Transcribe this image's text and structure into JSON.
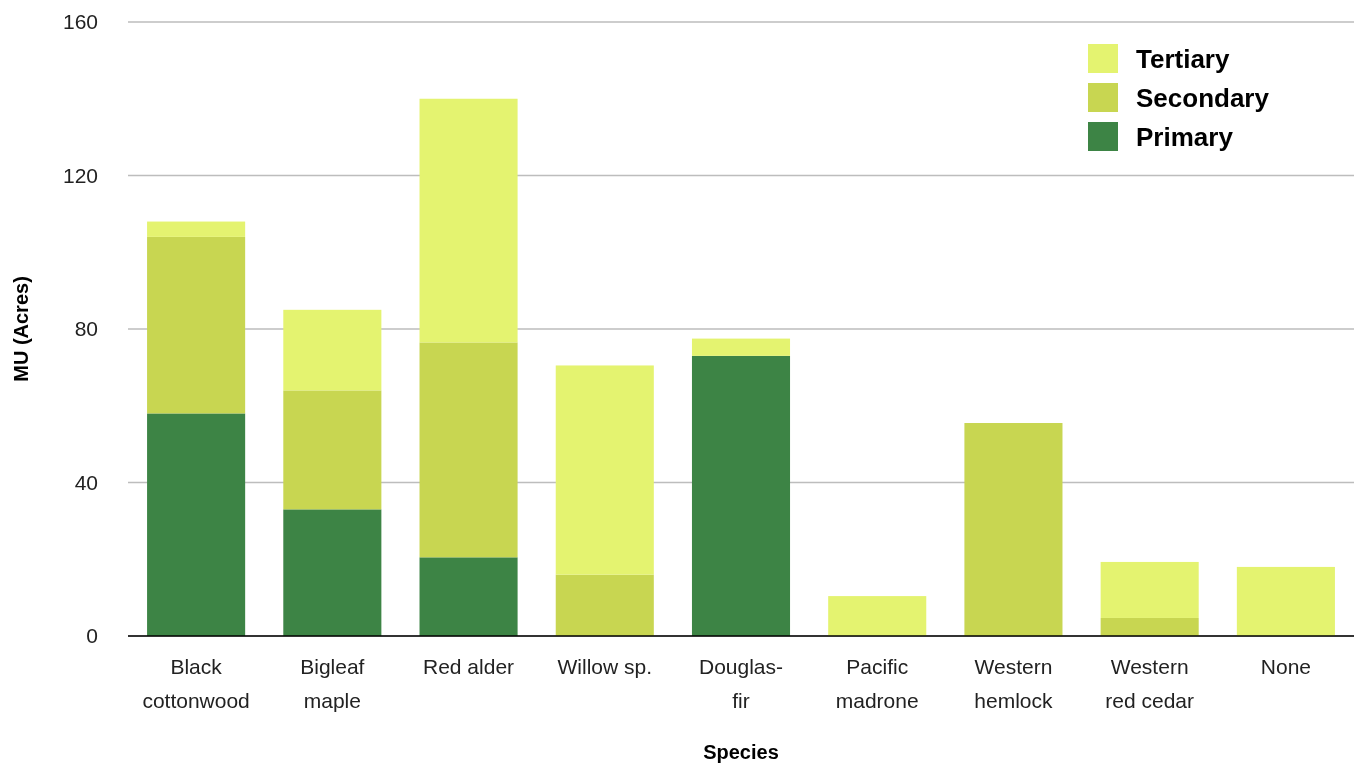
{
  "chart_data": {
    "type": "bar",
    "stacked": true,
    "xlabel": "Species",
    "ylabel": "MU (Acres)",
    "categories": [
      "Black cottonwood",
      "Bigleaf maple",
      "Red alder",
      "Willow sp.",
      "Douglas-fir",
      "Pacific madrone",
      "Western hemlock",
      "Western red cedar",
      "None"
    ],
    "series": [
      {
        "name": "Primary",
        "color": "#3d8445",
        "values": [
          58,
          33,
          20.5,
          0,
          73,
          0,
          0,
          0,
          0
        ]
      },
      {
        "name": "Secondary",
        "color": "#c8d651",
        "values": [
          46,
          31,
          56,
          16,
          0,
          0,
          55.5,
          4.7,
          0
        ]
      },
      {
        "name": "Tertiary",
        "color": "#e4f370",
        "values": [
          4,
          21,
          63.5,
          54.5,
          4.5,
          10.4,
          0,
          14.6,
          18
        ]
      }
    ],
    "ylim": [
      0,
      160
    ],
    "yticks": [
      0,
      40,
      80,
      120,
      160
    ],
    "grid": "y",
    "legend": "top right"
  }
}
